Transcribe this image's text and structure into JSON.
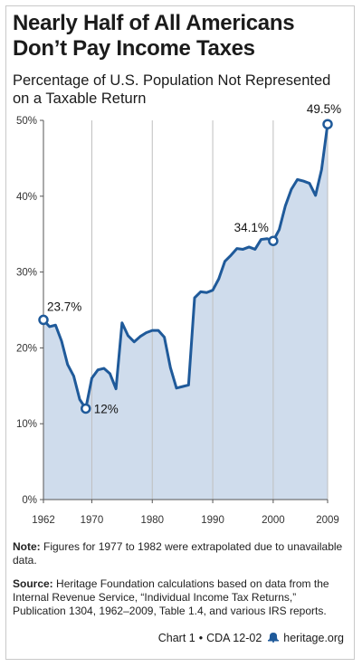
{
  "title_line1": "Nearly Half of All Americans",
  "title_line2": "Don’t Pay Income Taxes",
  "subtitle_line1": "Percentage of U.S. Population Not Represented",
  "subtitle_line2": "on a Taxable Return",
  "note_label": "Note:",
  "note_text": " Figures for 1977 to 1982 were extrapolated due to unavailable data.",
  "source_label": "Source:",
  "source_text": " Heritage Foundation calculations based on data from the Internal Revenue Service, “Individual Income Tax Returns,” Publication 1304, 1962–2009, Table 1.4, and various IRS reports.",
  "footer": {
    "chart_id": "Chart 1",
    "separator": "•",
    "doc_id": "CDA 12-02",
    "site": "heritage.org",
    "logo_icon": "bell-icon"
  },
  "chart_data": {
    "type": "area",
    "title": "Nearly Half of All Americans Don’t Pay Income Taxes",
    "subtitle": "Percentage of U.S. Population Not Represented on a Taxable Return",
    "xlabel": "",
    "ylabel": "",
    "xlim": [
      1962,
      2009
    ],
    "ylim": [
      0,
      50
    ],
    "x_ticks": [
      1962,
      1970,
      1980,
      1990,
      2000,
      2009
    ],
    "y_ticks": [
      0,
      10,
      20,
      30,
      40,
      50
    ],
    "y_tick_labels": [
      "0%",
      "10%",
      "20%",
      "30%",
      "40%",
      "50%"
    ],
    "grid": "vertical",
    "colors": {
      "line": "#1f5a9a",
      "fill": "#cfdcec",
      "grid": "#bfbfbf"
    },
    "x": [
      1962,
      1963,
      1964,
      1965,
      1966,
      1967,
      1968,
      1969,
      1970,
      1971,
      1972,
      1973,
      1974,
      1975,
      1976,
      1977,
      1978,
      1979,
      1980,
      1981,
      1982,
      1983,
      1984,
      1985,
      1986,
      1987,
      1988,
      1989,
      1990,
      1991,
      1992,
      1993,
      1994,
      1995,
      1996,
      1997,
      1998,
      1999,
      2000,
      2001,
      2002,
      2003,
      2004,
      2005,
      2006,
      2007,
      2008,
      2009
    ],
    "y": [
      23.7,
      22.8,
      23.0,
      20.9,
      17.8,
      16.3,
      13.2,
      12.0,
      16.0,
      17.1,
      17.3,
      16.6,
      14.6,
      23.3,
      21.6,
      20.8,
      21.5,
      22.0,
      22.3,
      22.3,
      21.4,
      17.4,
      14.7,
      14.9,
      15.1,
      26.6,
      27.4,
      27.3,
      27.6,
      29.1,
      31.4,
      32.2,
      33.1,
      33.0,
      33.3,
      33.0,
      34.3,
      34.4,
      34.1,
      35.6,
      38.7,
      40.9,
      42.2,
      42.0,
      41.7,
      40.1,
      43.5,
      49.5
    ],
    "annotations": [
      {
        "x": 1962,
        "y": 23.7,
        "label": "23.7%"
      },
      {
        "x": 1969,
        "y": 12.0,
        "label": "12%"
      },
      {
        "x": 2000,
        "y": 34.1,
        "label": "34.1%"
      },
      {
        "x": 2009,
        "y": 49.5,
        "label": "49.5%"
      }
    ]
  }
}
